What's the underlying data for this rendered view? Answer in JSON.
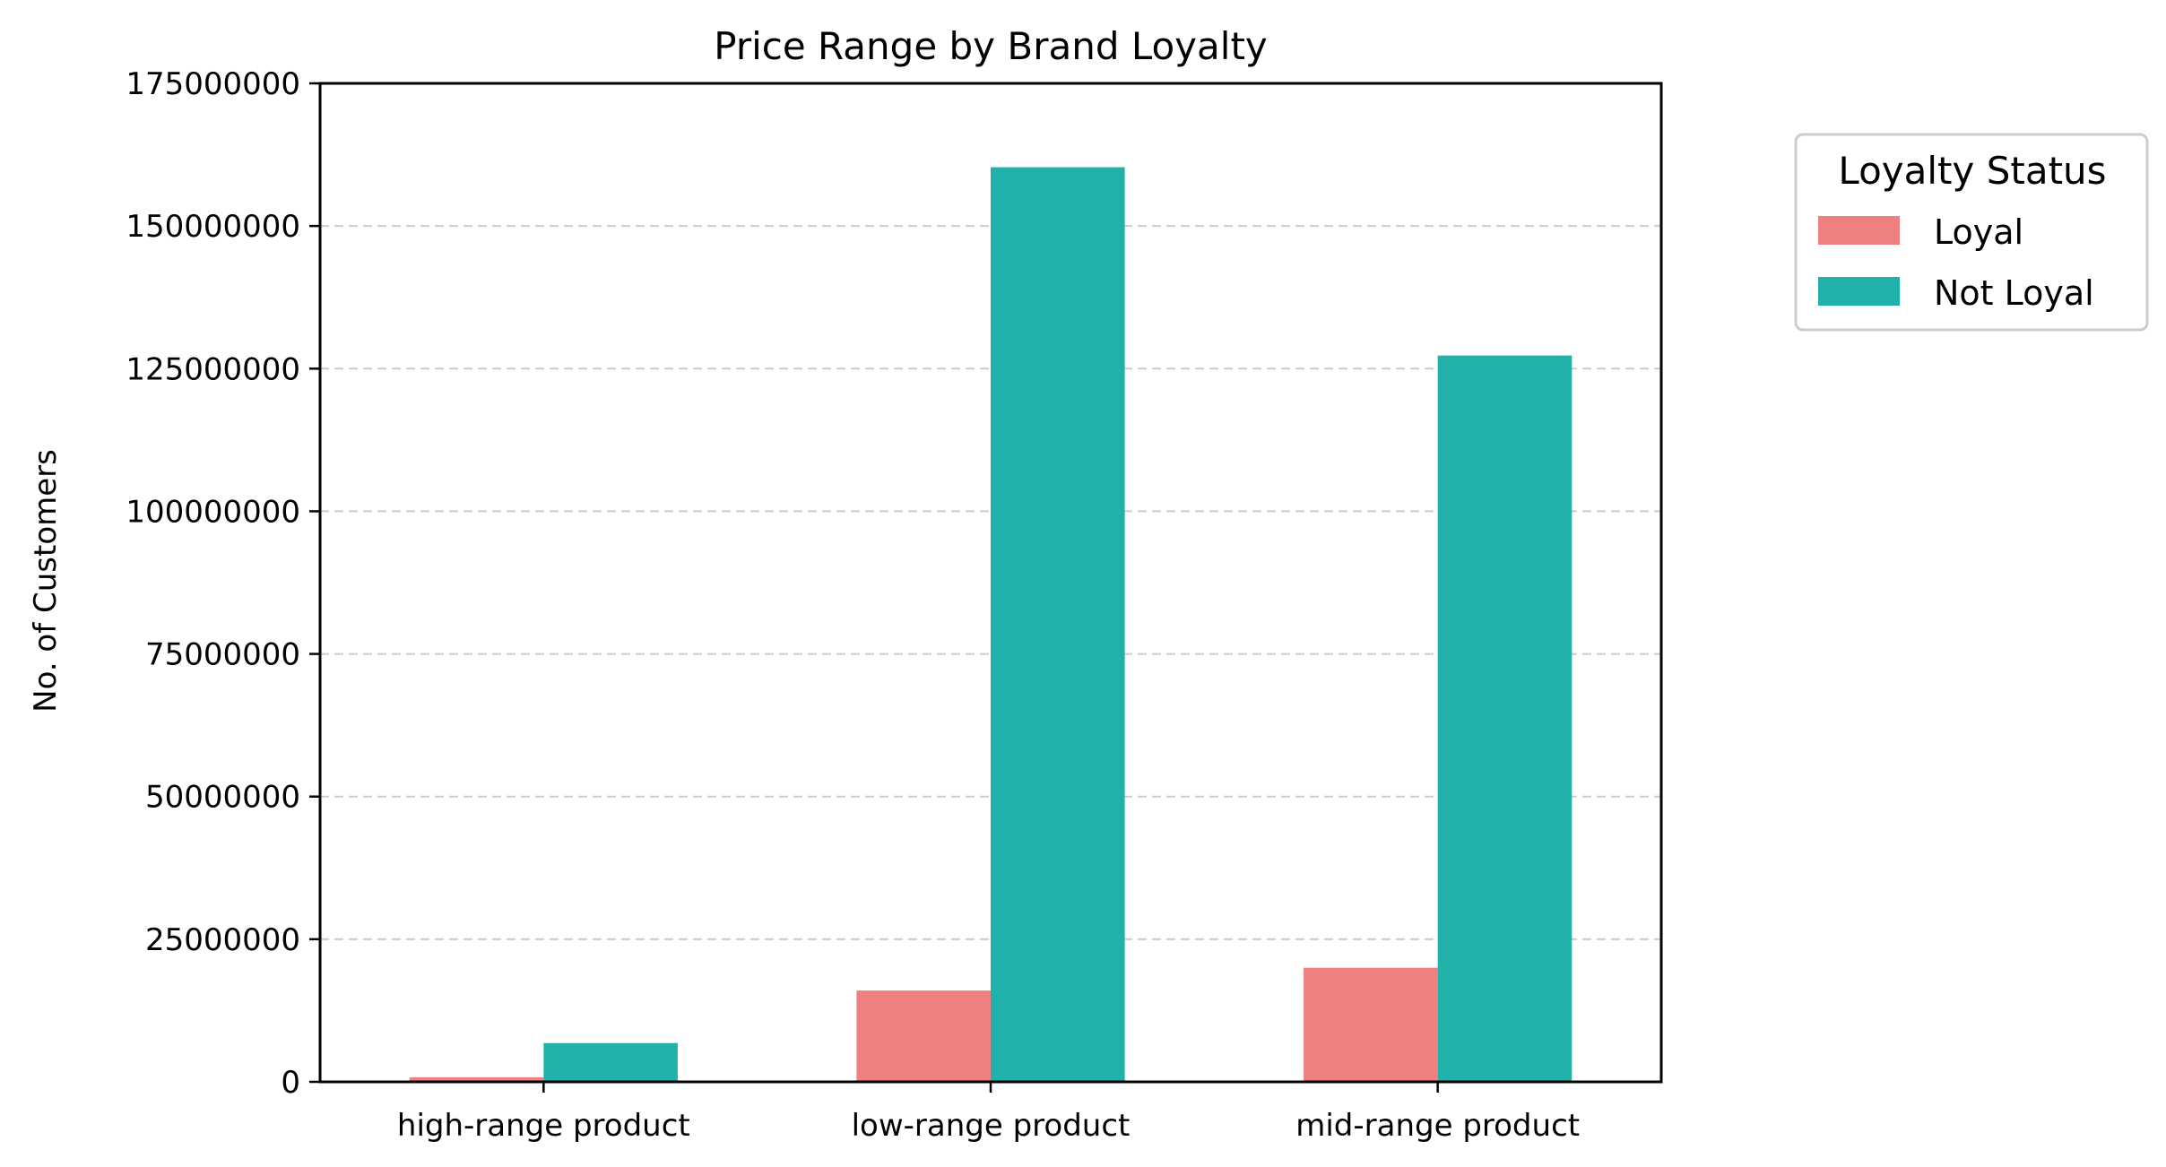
{
  "chart_data": {
    "type": "bar",
    "title": "Price Range by Brand Loyalty",
    "xlabel": "",
    "ylabel": "No. of Customers",
    "categories": [
      "high-range product",
      "low-range product",
      "mid-range product"
    ],
    "series": [
      {
        "name": "Loyal",
        "color": "#f08080",
        "values": [
          800000,
          16000000,
          20000000
        ]
      },
      {
        "name": "Not Loyal",
        "color": "#20b2aa",
        "values": [
          6800000,
          160300000,
          127300000
        ]
      }
    ],
    "ylim": [
      0,
      175000000
    ],
    "yticks": [
      0,
      25000000,
      50000000,
      75000000,
      100000000,
      125000000,
      150000000,
      175000000
    ],
    "ytick_labels": [
      "0",
      "25000000",
      "50000000",
      "75000000",
      "100000000",
      "125000000",
      "150000000",
      "175000000"
    ],
    "grid": "y-dashed",
    "legend": {
      "title": "Loyalty Status",
      "placement": "outside-right-top",
      "entries": [
        "Loyal",
        "Not Loyal"
      ]
    }
  }
}
